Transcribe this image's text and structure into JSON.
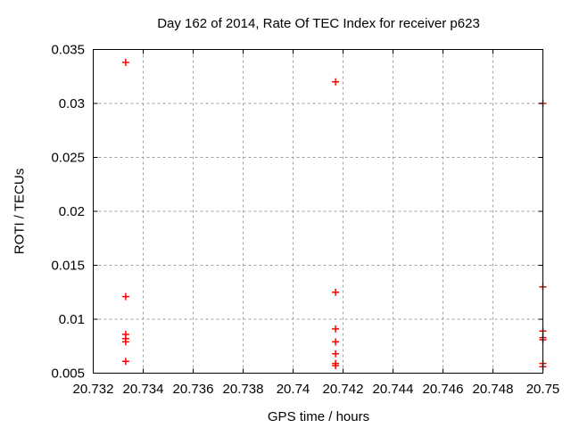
{
  "window": {
    "background": "#ffffff"
  },
  "chart_data": {
    "type": "scatter",
    "title": "Day 162 of 2014, Rate Of TEC Index for receiver p623",
    "xlabel": "GPS time / hours",
    "ylabel": "ROTI / TECUs",
    "xlim": [
      20.732,
      20.75
    ],
    "ylim": [
      0.005,
      0.035
    ],
    "xticks": {
      "values": [
        20.732,
        20.734,
        20.736,
        20.738,
        20.74,
        20.742,
        20.744,
        20.746,
        20.748,
        20.75
      ],
      "labels": [
        "20.732",
        "20.734",
        "20.736",
        "20.738",
        "20.74",
        "20.742",
        "20.744",
        "20.746",
        "20.748",
        "20.75"
      ]
    },
    "yticks": {
      "values": [
        0.005,
        0.01,
        0.015,
        0.02,
        0.025,
        0.03,
        0.035
      ],
      "labels": [
        "0.005",
        "0.01",
        "0.015",
        "0.02",
        "0.025",
        "0.03",
        "0.035"
      ]
    },
    "grid": true,
    "legend": "none",
    "marker": {
      "shape": "plus",
      "color": "#ff0000",
      "size": 8,
      "stroke_width": 1.5
    },
    "colors": {
      "axis": "#000000",
      "grid": "#a0a0a0",
      "text": "#000000",
      "background": "#ffffff"
    },
    "series": [
      {
        "points": [
          [
            20.7333,
            0.0338
          ],
          [
            20.7333,
            0.0121
          ],
          [
            20.7333,
            0.0086
          ],
          [
            20.7333,
            0.0082
          ],
          [
            20.7333,
            0.0079
          ],
          [
            20.7333,
            0.0061
          ],
          [
            20.7417,
            0.032
          ],
          [
            20.7417,
            0.0125
          ],
          [
            20.7417,
            0.0091
          ],
          [
            20.7417,
            0.0079
          ],
          [
            20.7417,
            0.0068
          ],
          [
            20.7417,
            0.0059
          ],
          [
            20.7417,
            0.0057
          ],
          [
            20.75,
            0.03
          ],
          [
            20.75,
            0.013
          ],
          [
            20.75,
            0.0089
          ],
          [
            20.75,
            0.0083
          ],
          [
            20.75,
            0.0081
          ],
          [
            20.75,
            0.0059
          ],
          [
            20.75,
            0.0056
          ]
        ]
      }
    ]
  }
}
